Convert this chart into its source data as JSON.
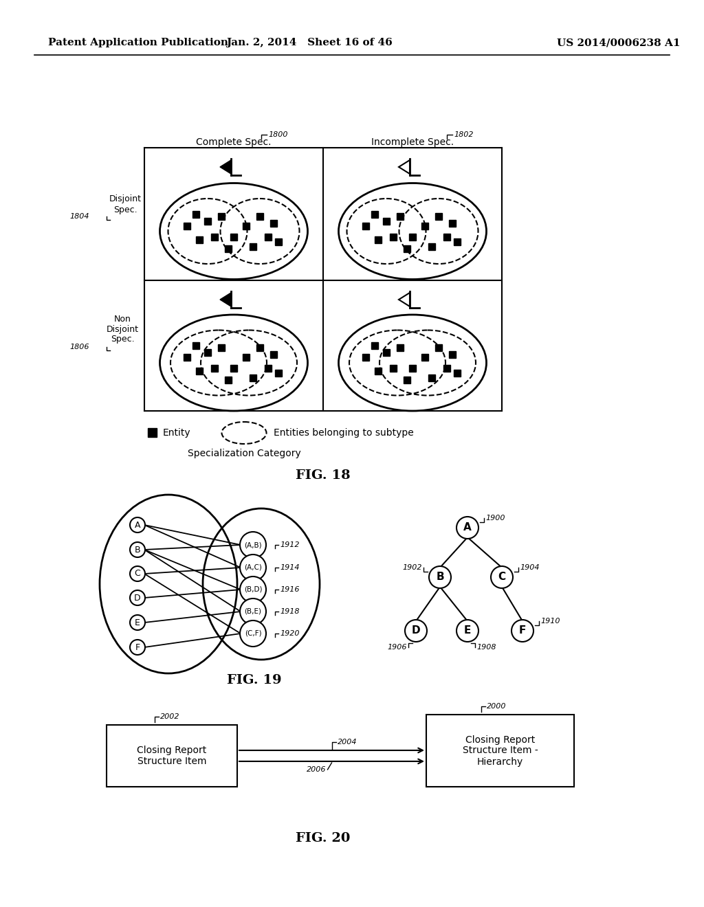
{
  "header_left": "Patent Application Publication",
  "header_mid": "Jan. 2, 2014   Sheet 16 of 46",
  "header_right": "US 2014/0006238 A1",
  "fig18_label": "FIG. 18",
  "fig19_label": "FIG. 19",
  "fig20_label": "FIG. 20",
  "bg_color": "#ffffff"
}
